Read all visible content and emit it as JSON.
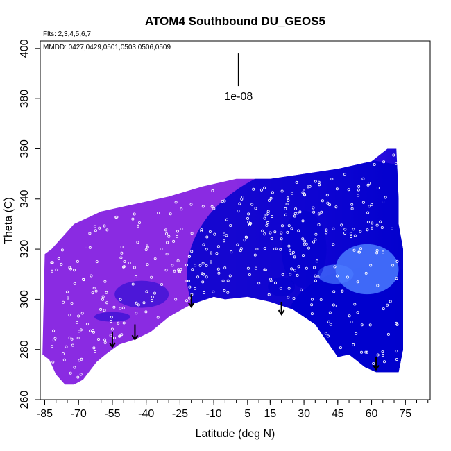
{
  "chart_data": {
    "type": "heatmap",
    "title": "ATOM4 Southbound DU_GEOS5",
    "flights_note": "Flts: 2,3,4,5,6,7",
    "mmdd_note": "MMDD: 0427,0429,0501,0503,0506,0509",
    "xlabel": "Latitude (deg N)",
    "ylabel": "Theta (C)",
    "xlim": [
      -87,
      86
    ],
    "ylim": [
      260,
      403
    ],
    "x_ticks": [
      -85,
      -70,
      -55,
      -40,
      -25,
      -10,
      5,
      15,
      30,
      45,
      60,
      75
    ],
    "x_tick_labels": [
      "-85",
      "-70",
      "-55",
      "-40",
      "-25",
      "-10",
      "5",
      "15",
      "30",
      "45",
      "60",
      "75"
    ],
    "y_ticks": [
      260,
      280,
      300,
      320,
      340,
      360,
      380,
      400
    ],
    "y_tick_labels": [
      "260",
      "280",
      "300",
      "320",
      "340",
      "360",
      "380",
      "400"
    ],
    "scale_bar": {
      "label": "1e-08",
      "x": 1,
      "y_top": 398,
      "y_bottom": 385
    },
    "field_outline": {
      "top": [
        [
          -85,
          318
        ],
        [
          -82,
          320
        ],
        [
          -78,
          324
        ],
        [
          -72,
          330
        ],
        [
          -60,
          335
        ],
        [
          -45,
          338
        ],
        [
          -30,
          341
        ],
        [
          -15,
          345
        ],
        [
          0,
          348
        ],
        [
          15,
          348
        ],
        [
          30,
          350
        ],
        [
          45,
          352
        ],
        [
          60,
          355
        ],
        [
          67,
          360
        ],
        [
          71,
          360
        ],
        [
          72,
          340
        ],
        [
          72,
          330
        ],
        [
          74,
          320
        ],
        [
          74,
          296
        ],
        [
          74,
          280
        ],
        [
          72,
          271
        ]
      ],
      "bottom": [
        [
          72,
          271
        ],
        [
          62,
          271
        ],
        [
          57,
          273
        ],
        [
          50,
          278
        ],
        [
          45,
          277
        ],
        [
          35,
          290
        ],
        [
          25,
          296
        ],
        [
          15,
          299
        ],
        [
          5,
          301
        ],
        [
          -5,
          300
        ],
        [
          -10,
          301
        ],
        [
          -20,
          298
        ],
        [
          -30,
          293
        ],
        [
          -38,
          287
        ],
        [
          -45,
          284
        ],
        [
          -52,
          282
        ],
        [
          -58,
          278
        ],
        [
          -62,
          275
        ],
        [
          -68,
          268
        ],
        [
          -72,
          266
        ],
        [
          -76,
          266
        ],
        [
          -80,
          270
        ],
        [
          -83,
          276
        ],
        [
          -86,
          278
        ]
      ]
    },
    "fill_colors": {
      "low": "#8a2be2",
      "mid": "#5a1cf0",
      "high": "#0000cd",
      "peak": "#4a7bff"
    },
    "arrows": [
      {
        "x": -55,
        "y_top": 287,
        "y_bottom": 281
      },
      {
        "x": -45,
        "y_top": 290,
        "y_bottom": 284
      },
      {
        "x": -20,
        "y_top": 302,
        "y_bottom": 297
      },
      {
        "x": 20,
        "y_top": 299,
        "y_bottom": 294
      },
      {
        "x": 62,
        "y_top": 277,
        "y_bottom": 272
      }
    ],
    "obs_points_note": "white open circles mark observation locations",
    "grid": false,
    "legend": "none"
  }
}
